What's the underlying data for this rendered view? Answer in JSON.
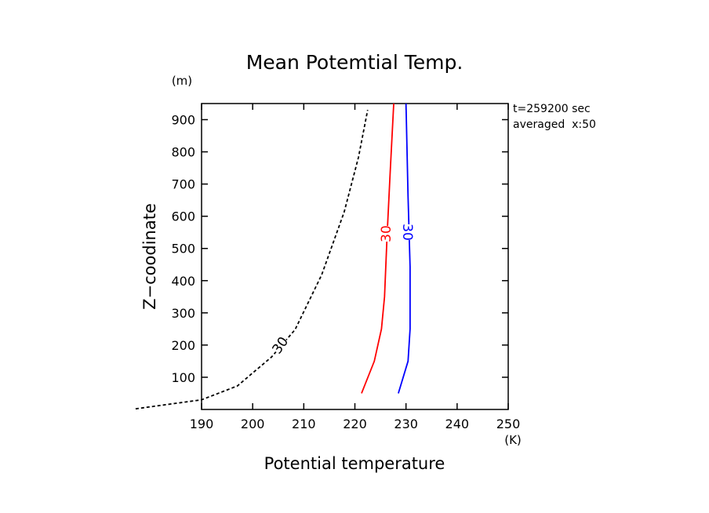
{
  "chart_data": {
    "type": "line",
    "title": "Mean Potemtial Temp.",
    "x_label": "Potential temperature",
    "y_label": "Z−coodinate",
    "x_unit": "(K)",
    "y_unit": "(m)",
    "annotations": [
      "t=259200 sec",
      "averaged  x:50"
    ],
    "xlim": [
      190,
      250
    ],
    "xticks": [
      190,
      200,
      210,
      220,
      230,
      240,
      250
    ],
    "ylim": [
      0,
      950
    ],
    "yticks": [
      100,
      200,
      300,
      400,
      500,
      600,
      700,
      800,
      900
    ],
    "series": [
      {
        "label": "30",
        "color": "#000000",
        "dashed": true,
        "x": [
          177.1,
          190,
          197,
          203.7,
          208.3,
          213.5,
          217.9,
          220.7,
          222.5
        ],
        "y": [
          2,
          30,
          73,
          163,
          248,
          418,
          613,
          783,
          930
        ]
      },
      {
        "label": "30",
        "color": "#ff0000",
        "dashed": false,
        "x": [
          221.3,
          223.8,
          225.2,
          225.8,
          226.3,
          226.9,
          227.6
        ],
        "y": [
          50,
          150,
          250,
          350,
          540,
          735,
          950
        ]
      },
      {
        "label": "30",
        "color": "#0000ff",
        "dashed": false,
        "x": [
          228.5,
          230.4,
          230.8,
          230.8,
          230.4,
          230.0
        ],
        "y": [
          50,
          150,
          250,
          443,
          662,
          950
        ]
      }
    ]
  }
}
